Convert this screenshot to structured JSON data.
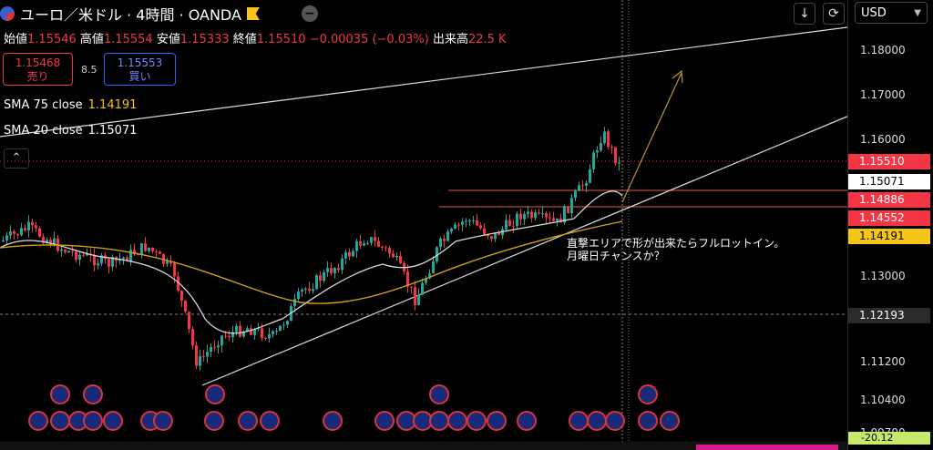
{
  "header": {
    "symbol_title": "ユーロ／米ドル · 4時間 · OANDA"
  },
  "ohlc": {
    "open_label": "始値",
    "open": "1.15546",
    "high_label": "高値",
    "high": "1.15554",
    "low_label": "安値",
    "low": "1.15333",
    "close_label": "終値",
    "close": "1.15510",
    "change": "−0.00035 (−0.03%)",
    "volume_label": "出来高",
    "volume": "22.5 K"
  },
  "trade": {
    "sell_price": "1.15468",
    "sell_label": "売り",
    "spread": "8.5",
    "buy_price": "1.15553",
    "buy_label": "買い"
  },
  "indicators": {
    "sma75_label": "SMA 75 close",
    "sma75_value": "1.14191",
    "sma20_label": "SMA 20 close",
    "sma20_value": "1.15071"
  },
  "currency_select": "USD",
  "annotation": {
    "line1": "直撃エリアで形が出来たらフルロットイン。",
    "line2": "月曜日チャンスか？"
  },
  "price_axis": {
    "ticks": [
      "1.18000",
      "1.17000",
      "1.16000",
      "1.13000",
      "1.11200",
      "1.10400",
      "1.09700"
    ],
    "labels": [
      {
        "text": "1.15510",
        "bg": "#f23645",
        "fg": "#ffffff"
      },
      {
        "text": "1.15071",
        "bg": "#ffffff",
        "fg": "#000000"
      },
      {
        "text": "1.14886",
        "bg": "#f23645",
        "fg": "#ffffff"
      },
      {
        "text": "1.14552",
        "bg": "#f23645",
        "fg": "#ffffff"
      },
      {
        "text": "1.14191",
        "bg": "#f5c518",
        "fg": "#000000"
      },
      {
        "text": "1.12193",
        "bg": "#2a2a2a",
        "fg": "#ffffff"
      }
    ],
    "bottom_value": "-20.12"
  },
  "colors": {
    "up": "#26a69a",
    "down": "#f23645",
    "sma75": "#d4a017",
    "sma20": "#e0e0e0",
    "accent": "#2962ff"
  }
}
